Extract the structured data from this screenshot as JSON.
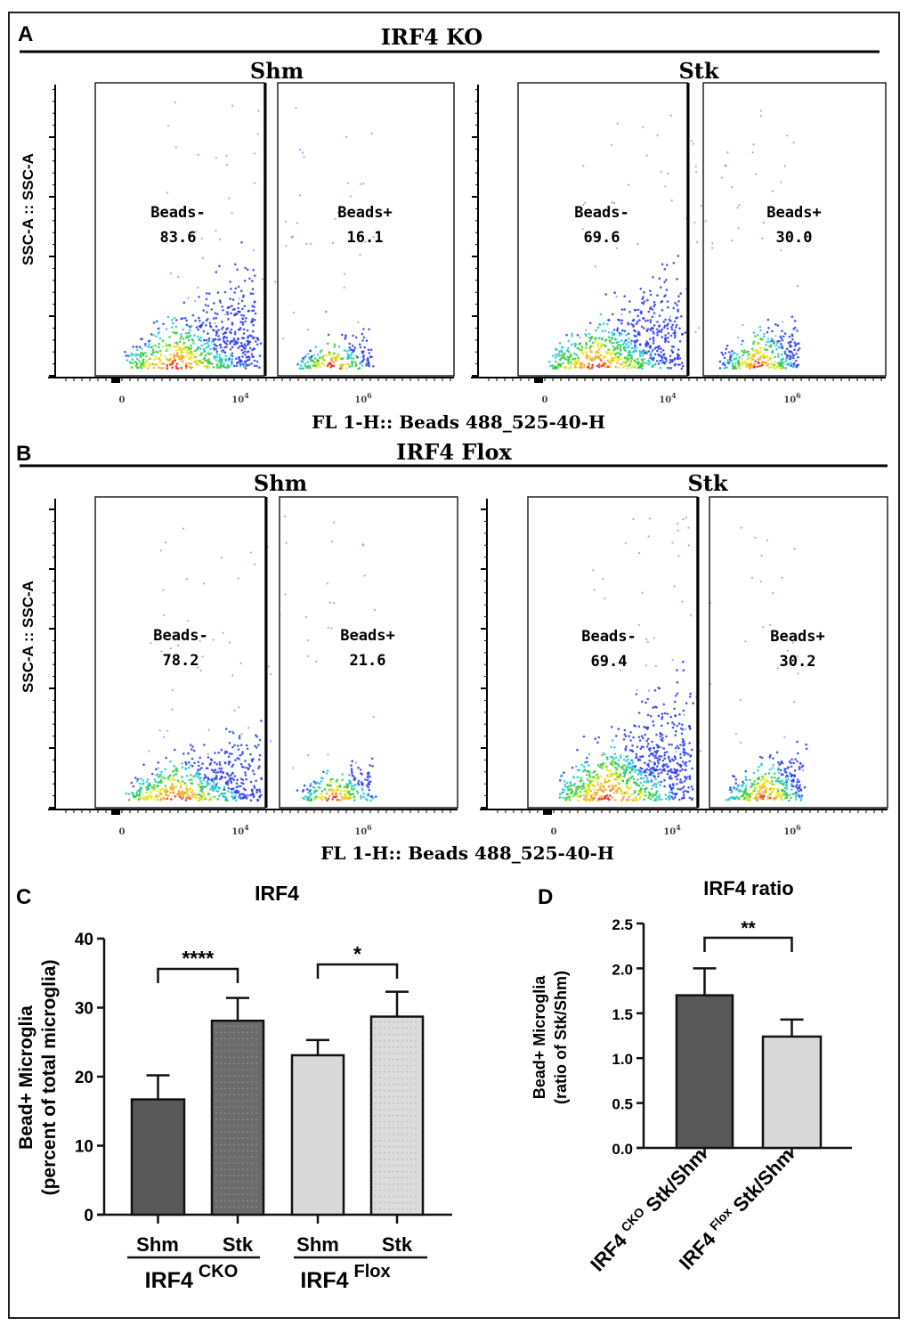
{
  "panels": {
    "a": "A",
    "b": "B",
    "c": "C",
    "d": "D"
  },
  "panel_a": {
    "title": "IRF4 KO",
    "left_title": "Shm",
    "right_title": "Stk"
  },
  "panel_b": {
    "title": "IRF4 Flox",
    "left_title": "Shm",
    "right_title": "Stk"
  },
  "flow_axes": {
    "ylabel": "SSC-A :: SSC-A",
    "xlabel": "FL 1-H:: Beads 488_525-40-H",
    "xticks": [
      {
        "base": "0",
        "exp": ""
      },
      {
        "base": "10",
        "exp": "4"
      },
      {
        "base": "10",
        "exp": "6"
      }
    ]
  },
  "chart_data": [
    {
      "type": "scatter",
      "panel": "A",
      "group": "IRF4 KO",
      "condition": "Shm",
      "gates": [
        {
          "name": "Beads-",
          "percent": "83.6"
        },
        {
          "name": "Beads+",
          "percent": "16.1"
        }
      ]
    },
    {
      "type": "scatter",
      "panel": "A",
      "group": "IRF4 KO",
      "condition": "Stk",
      "gates": [
        {
          "name": "Beads-",
          "percent": "69.6"
        },
        {
          "name": "Beads+",
          "percent": "30.0"
        }
      ]
    },
    {
      "type": "scatter",
      "panel": "B",
      "group": "IRF4 Flox",
      "condition": "Shm",
      "gates": [
        {
          "name": "Beads-",
          "percent": "78.2"
        },
        {
          "name": "Beads+",
          "percent": "21.6"
        }
      ]
    },
    {
      "type": "scatter",
      "panel": "B",
      "group": "IRF4 Flox",
      "condition": "Stk",
      "gates": [
        {
          "name": "Beads-",
          "percent": "69.4"
        },
        {
          "name": "Beads+",
          "percent": "30.2"
        }
      ]
    },
    {
      "type": "bar",
      "panel": "C",
      "title": "IRF4",
      "ylabel_line1": "Bead+ Microglia",
      "ylabel_line2": "(percent of total microglia)",
      "ylim": [
        0,
        40
      ],
      "yticks": [
        "0",
        "10",
        "20",
        "30",
        "40"
      ],
      "categories": [
        "Shm",
        "Stk",
        "Shm",
        "Stk"
      ],
      "groups": [
        {
          "name": "IRF4",
          "sup": "CKO"
        },
        {
          "name": "IRF4",
          "sup": "Flox"
        }
      ],
      "values": [
        16.7,
        28.1,
        23.1,
        28.7
      ],
      "error_upper": [
        20.2,
        31.4,
        25.3,
        32.3
      ],
      "fills": [
        "#595959",
        "#6b6b6b",
        "#d9d9d9",
        "#dcdcdc"
      ],
      "significance": [
        {
          "from": 0,
          "to": 1,
          "label": "****"
        },
        {
          "from": 2,
          "to": 3,
          "label": "*"
        }
      ]
    },
    {
      "type": "bar",
      "panel": "D",
      "title": "IRF4 ratio",
      "ylabel_line1": "Bead+ Microglia",
      "ylabel_line2": "(ratio of Stk/Shm)",
      "ylim": [
        0,
        2.5
      ],
      "yticks": [
        "0.0",
        "0.5",
        "1.0",
        "1.5",
        "2.0",
        "2.5"
      ],
      "categories": [
        {
          "pre": "IRF4 ",
          "sup": "CKO",
          "post": " Stk/Shm"
        },
        {
          "pre": "IRF4 ",
          "sup": "Flox",
          "post": " Stk/Shm"
        }
      ],
      "values": [
        1.7,
        1.24
      ],
      "error_upper": [
        2.0,
        1.43
      ],
      "fills": [
        "#595959",
        "#d9d9d9"
      ],
      "significance": [
        {
          "from": 0,
          "to": 1,
          "label": "**"
        }
      ]
    }
  ]
}
